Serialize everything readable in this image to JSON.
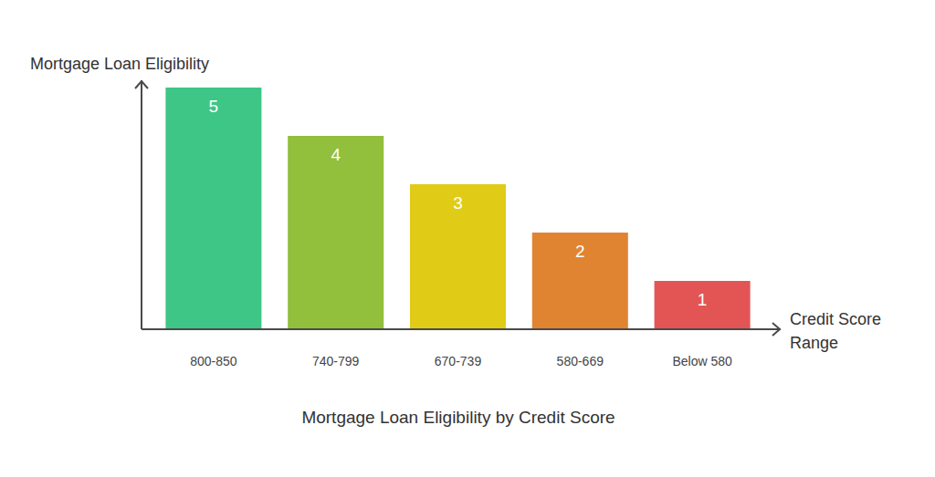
{
  "chart_data": {
    "type": "bar",
    "title": "Mortgage Loan Eligibility by Credit Score",
    "y_label": "Mortgage Loan Eligibility",
    "x_label": "Credit Score Range",
    "categories": [
      "800-850",
      "740-799",
      "670-739",
      "580-669",
      "Below 580"
    ],
    "values": [
      5,
      4,
      3,
      2,
      1
    ],
    "colors": [
      "#3ec686",
      "#92bf3c",
      "#e0cc17",
      "#e08432",
      "#e35555"
    ],
    "ylim": [
      0,
      5
    ],
    "data_labels": true,
    "tick_labels": "x",
    "grid": false
  }
}
